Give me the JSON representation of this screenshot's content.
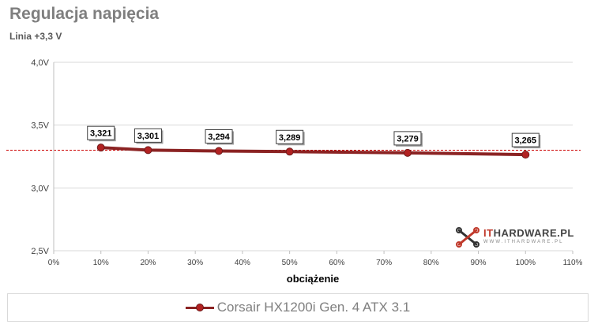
{
  "title": "Regulacja napięcia",
  "subtitle": "Linia +3,3 V",
  "colors": {
    "series": "#8b2323",
    "marker": "#b22222",
    "reference": "#cc0000",
    "grid": "#d9d9d9"
  },
  "logo": {
    "text_it": "IT",
    "text_rest": "HARDWARE.PL",
    "sub": "WWW.ITHARDWARE.PL",
    "icon": "wrench-cross-icon"
  },
  "chart_data": {
    "type": "line",
    "title": "Regulacja napięcia",
    "subtitle": "Linia +3,3 V",
    "xlabel": "obciążenie",
    "ylabel": "",
    "xlim": [
      0,
      110
    ],
    "ylim": [
      2.5,
      4.0
    ],
    "x_ticks": [
      "0%",
      "10%",
      "20%",
      "30%",
      "40%",
      "50%",
      "60%",
      "70%",
      "80%",
      "90%",
      "100%",
      "110%"
    ],
    "y_ticks": [
      "2,5V",
      "3,0V",
      "3,5V",
      "4,0V"
    ],
    "reference_line": 3.3,
    "grid": true,
    "legend_position": "bottom",
    "series": [
      {
        "name": "Corsair HX1200i Gen. 4 ATX 3.1",
        "x": [
          10,
          20,
          35,
          50,
          75,
          100
        ],
        "y": [
          3.321,
          3.301,
          3.294,
          3.289,
          3.279,
          3.265
        ],
        "labels": [
          "3,321",
          "3,301",
          "3,294",
          "3,289",
          "3,279",
          "3,265"
        ]
      }
    ]
  }
}
